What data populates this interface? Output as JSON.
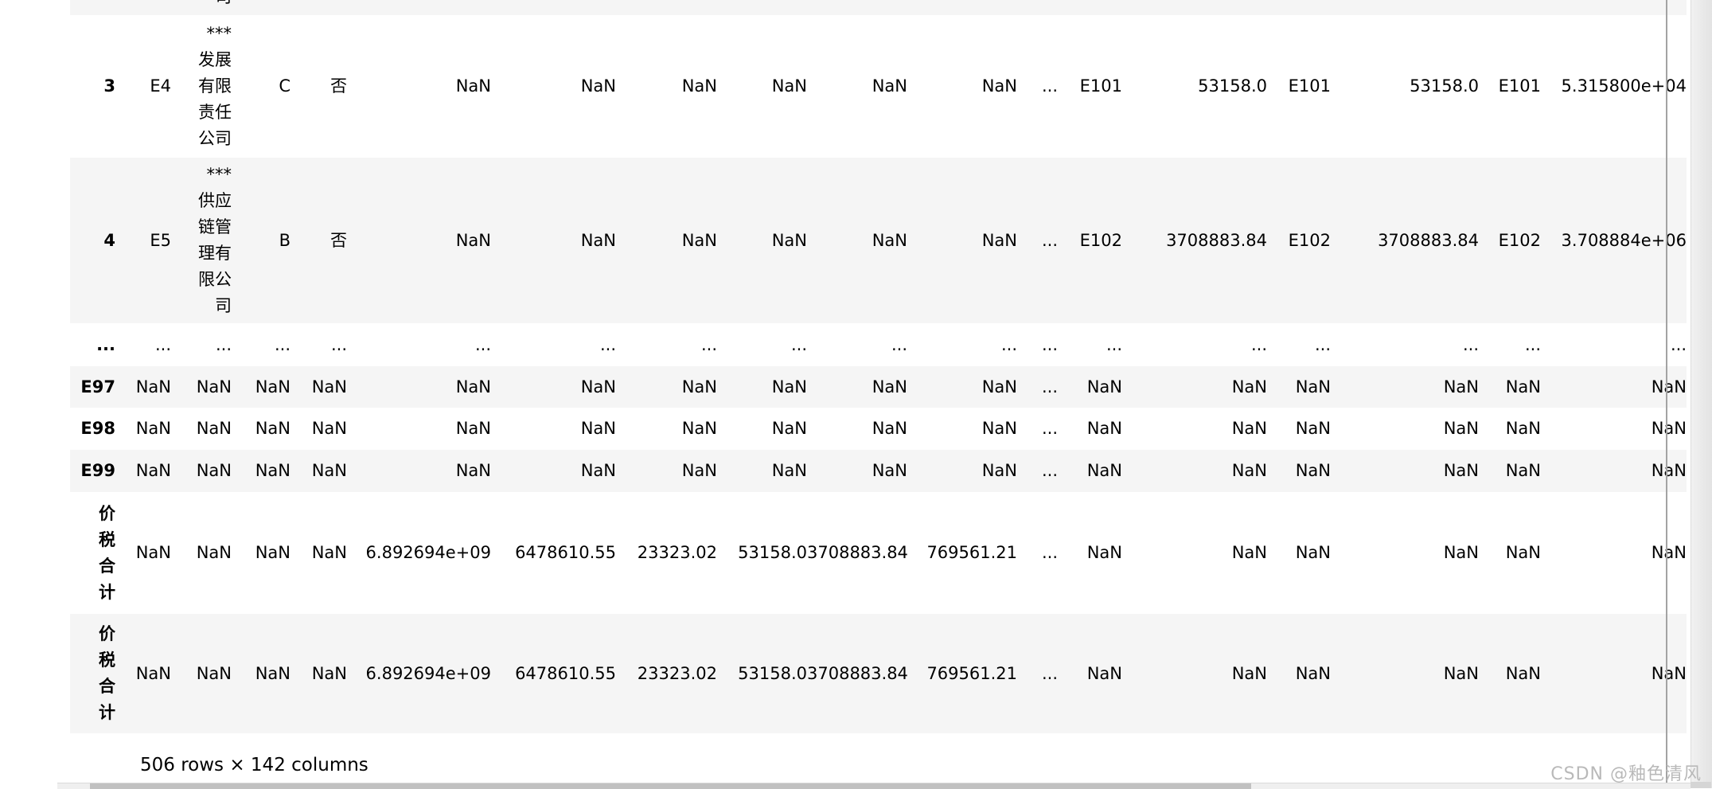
{
  "table": {
    "clipped_top_row": {
      "note": "partially scrolled-out row, only bottom of company-name character visible",
      "visible_char": "司",
      "company_col_index": 2
    },
    "rows": [
      {
        "clipped": true,
        "cells": [
          "",
          "",
          "司",
          "",
          "",
          "",
          "",
          "",
          "",
          "",
          "",
          "",
          "",
          "",
          "",
          "",
          "",
          ""
        ]
      },
      {
        "clipped": false,
        "cells": [
          "3",
          "E4",
          "***\n发展\n有限\n责任\n公司",
          "C",
          "否",
          "NaN",
          "NaN",
          "NaN",
          "NaN",
          "NaN",
          "NaN",
          "...",
          "E101",
          "53158.0",
          "E101",
          "53158.0",
          "E101",
          "5.315800e+04"
        ]
      },
      {
        "clipped": false,
        "cells": [
          "4",
          "E5",
          "***\n供应\n链管\n理有\n限公\n司",
          "B",
          "否",
          "NaN",
          "NaN",
          "NaN",
          "NaN",
          "NaN",
          "NaN",
          "...",
          "E102",
          "3708883.84",
          "E102",
          "3708883.84",
          "E102",
          "3.708884e+06"
        ]
      },
      {
        "clipped": false,
        "cells": [
          "...",
          "...",
          "...",
          "...",
          "...",
          "...",
          "...",
          "...",
          "...",
          "...",
          "...",
          "...",
          "...",
          "...",
          "...",
          "...",
          "...",
          "..."
        ]
      },
      {
        "clipped": false,
        "cells": [
          "E97",
          "NaN",
          "NaN",
          "NaN",
          "NaN",
          "NaN",
          "NaN",
          "NaN",
          "NaN",
          "NaN",
          "NaN",
          "...",
          "NaN",
          "NaN",
          "NaN",
          "NaN",
          "NaN",
          "NaN"
        ]
      },
      {
        "clipped": false,
        "cells": [
          "E98",
          "NaN",
          "NaN",
          "NaN",
          "NaN",
          "NaN",
          "NaN",
          "NaN",
          "NaN",
          "NaN",
          "NaN",
          "...",
          "NaN",
          "NaN",
          "NaN",
          "NaN",
          "NaN",
          "NaN"
        ]
      },
      {
        "clipped": false,
        "cells": [
          "E99",
          "NaN",
          "NaN",
          "NaN",
          "NaN",
          "NaN",
          "NaN",
          "NaN",
          "NaN",
          "NaN",
          "NaN",
          "...",
          "NaN",
          "NaN",
          "NaN",
          "NaN",
          "NaN",
          "NaN"
        ]
      },
      {
        "clipped": false,
        "cells": [
          "价\n税\n合\n计",
          "NaN",
          "NaN",
          "NaN",
          "NaN",
          "6.892694e+09",
          "6478610.55",
          "23323.02",
          "53158.0",
          "3708883.84",
          "769561.21",
          "...",
          "NaN",
          "NaN",
          "NaN",
          "NaN",
          "NaN",
          "NaN"
        ]
      },
      {
        "clipped": false,
        "cells": [
          "价\n税\n合\n计",
          "NaN",
          "NaN",
          "NaN",
          "NaN",
          "6.892694e+09",
          "6478610.55",
          "23323.02",
          "53158.0",
          "3708883.84",
          "769561.21",
          "...",
          "NaN",
          "NaN",
          "NaN",
          "NaN",
          "NaN",
          "NaN"
        ]
      }
    ]
  },
  "footer": {
    "summary": "506 rows × 142 columns"
  },
  "watermark": {
    "text": "CSDN @釉色清风"
  },
  "colors": {
    "row_stripe": "#f5f5f5",
    "text": "#000000",
    "divider": "#a3a3a3",
    "scrollbar_thumb": "#c1c1c1",
    "scrollbar_track": "#efefef",
    "watermark": "#b9b9b9"
  }
}
